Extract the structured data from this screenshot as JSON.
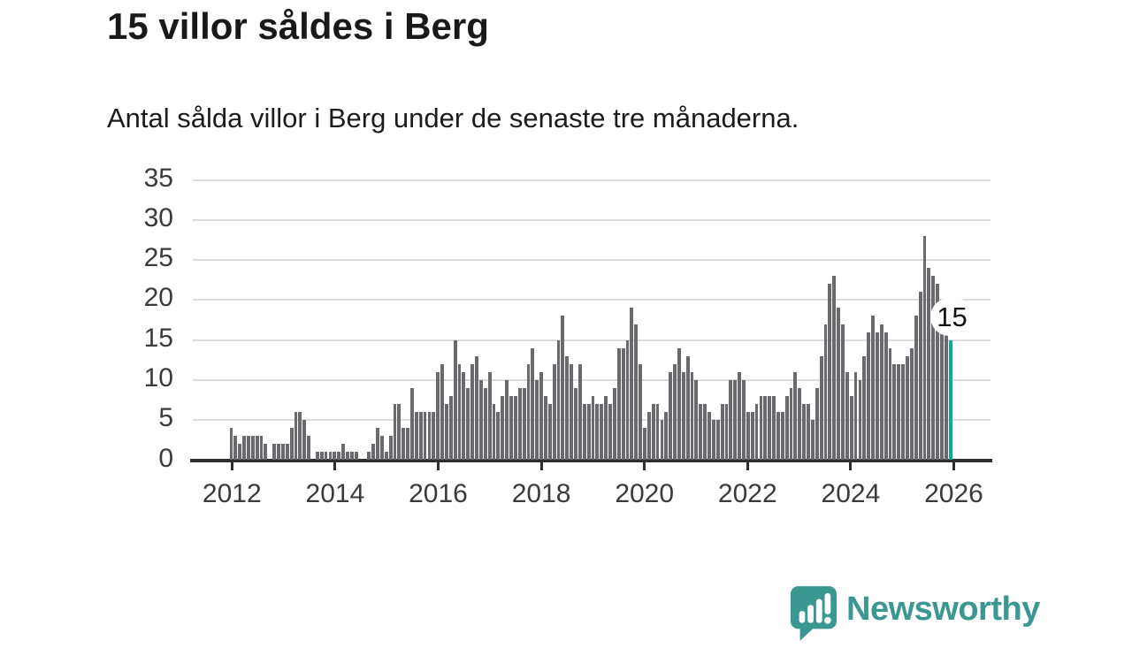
{
  "page": {
    "title": "15 villor såldes i Berg",
    "subtitle": "Antal sålda villor i Berg under de senaste tre månaderna."
  },
  "callout": {
    "value": "15"
  },
  "branding": {
    "wordmark": "Newsworthy"
  },
  "colors": {
    "bar": "#6a696d",
    "highlight": "#12a7a0",
    "grid": "#dcdcdc",
    "axis": "#2f2f2f",
    "label": "#3a3a3a",
    "logo": "#3b9792"
  },
  "chart_data": {
    "type": "bar",
    "title": "15 villor såldes i Berg",
    "subtitle": "Antal sålda villor i Berg under de senaste tre månaderna.",
    "frequency": "monthly",
    "x_start": "2012-01",
    "x_end": "2025-12",
    "x_tick_labels": [
      "2012",
      "2014",
      "2016",
      "2018",
      "2020",
      "2022",
      "2024",
      "2026"
    ],
    "y_ticks": [
      0,
      5,
      10,
      15,
      20,
      25,
      30,
      35
    ],
    "ylim": [
      0,
      35
    ],
    "grid": true,
    "values": [
      4,
      3,
      2,
      3,
      3,
      3,
      3,
      3,
      2,
      0,
      2,
      2,
      2,
      2,
      4,
      6,
      6,
      5,
      3,
      0,
      1,
      1,
      1,
      1,
      1,
      1,
      2,
      1,
      1,
      1,
      0,
      0,
      1,
      2,
      4,
      3,
      1,
      3,
      7,
      7,
      4,
      4,
      9,
      6,
      6,
      6,
      6,
      6,
      11,
      12,
      7,
      8,
      15,
      12,
      11,
      9,
      12,
      13,
      10,
      9,
      11,
      7,
      6,
      8,
      10,
      8,
      8,
      9,
      9,
      12,
      14,
      10,
      11,
      8,
      7,
      12,
      15,
      18,
      13,
      12,
      9,
      12,
      7,
      7,
      8,
      7,
      7,
      8,
      7,
      9,
      14,
      14,
      15,
      19,
      17,
      12,
      4,
      6,
      7,
      7,
      5,
      6,
      11,
      12,
      14,
      11,
      13,
      11,
      10,
      7,
      7,
      6,
      5,
      5,
      7,
      7,
      10,
      10,
      11,
      10,
      6,
      6,
      7,
      8,
      8,
      8,
      8,
      6,
      6,
      8,
      9,
      11,
      9,
      7,
      7,
      5,
      9,
      13,
      17,
      22,
      23,
      19,
      17,
      11,
      8,
      11,
      10,
      13,
      16,
      18,
      16,
      17,
      16,
      14,
      12,
      12,
      12,
      13,
      14,
      18,
      21,
      28,
      24,
      23,
      22,
      20,
      16,
      15
    ],
    "highlight": {
      "index": 167,
      "value": 15,
      "label": "15",
      "color": "#12a7a0"
    }
  }
}
